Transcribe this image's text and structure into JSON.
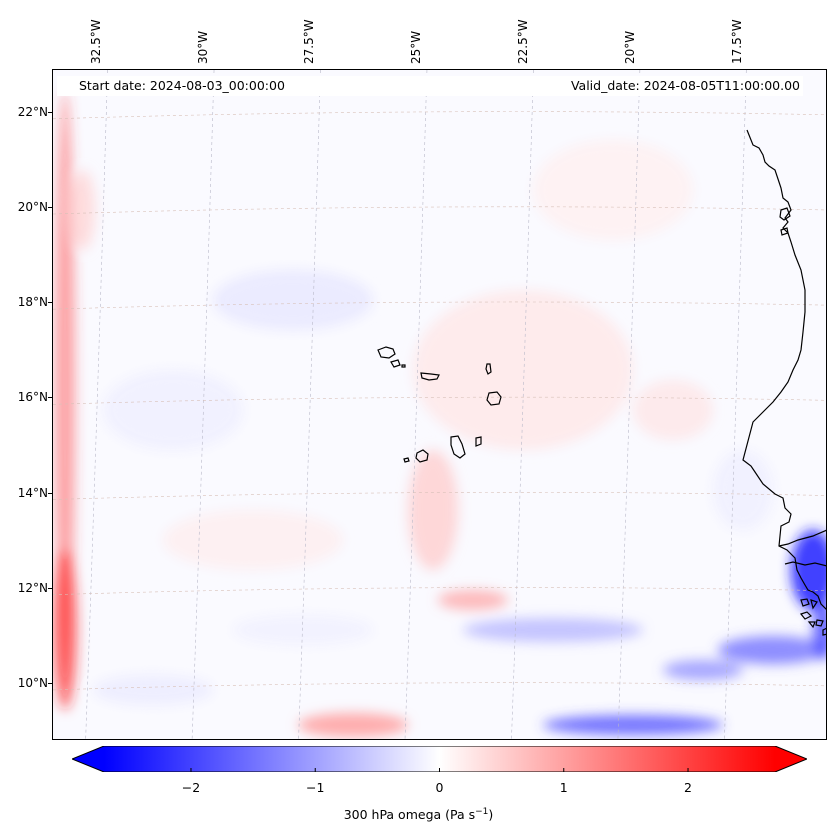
{
  "map": {
    "start_date": "Start date: 2024-08-03_00:00:00",
    "valid_date": "Valid_date: 2024-08-05T11:00:00.00",
    "variable_label": "300 hPa omega (Pa s",
    "variable_unit_exp": "−1",
    "variable_label_close": ")",
    "projection": "lambert-conformal",
    "extent": {
      "lon_min": -33.5,
      "lon_max": -15.3,
      "lat_min": 8.8,
      "lat_max": 22.9
    },
    "lon_labels": [
      {
        "value": -32.5,
        "text": "32.5°W"
      },
      {
        "value": -30,
        "text": "30°W"
      },
      {
        "value": -27.5,
        "text": "27.5°W"
      },
      {
        "value": -25,
        "text": "25°W"
      },
      {
        "value": -22.5,
        "text": "22.5°W"
      },
      {
        "value": -20,
        "text": "20°W"
      },
      {
        "value": -17.5,
        "text": "17.5°W"
      }
    ],
    "lat_labels": [
      {
        "value": 22,
        "text": "22°N"
      },
      {
        "value": 20,
        "text": "20°N"
      },
      {
        "value": 18,
        "text": "18°N"
      },
      {
        "value": 16,
        "text": "16°N"
      },
      {
        "value": 14,
        "text": "14°N"
      },
      {
        "value": 12,
        "text": "12°N"
      },
      {
        "value": 10,
        "text": "10°N"
      }
    ],
    "gridlines": true,
    "features": [
      "West Africa coastline",
      "Cape Verde islands",
      "Bijagos islands"
    ]
  },
  "colorbar": {
    "cmap": "bwr",
    "vmin": -2.7,
    "vmax": 2.7,
    "extend": "both",
    "ticks": [
      {
        "value": -2,
        "text": "−2"
      },
      {
        "value": -1,
        "text": "−1"
      },
      {
        "value": 0,
        "text": "0"
      },
      {
        "value": 1,
        "text": "1"
      },
      {
        "value": 2,
        "text": "2"
      }
    ],
    "colors": {
      "neg": "#0000ff",
      "mid": "#ffffff",
      "pos": "#ff0000"
    }
  }
}
